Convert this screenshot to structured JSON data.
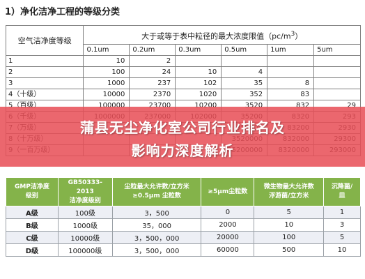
{
  "heading": "1）净化洁净工程的等级分类",
  "table1": {
    "class_header": "空气洁净度等级",
    "limit_header_prefix": "大于或等于表中粒径的最大浓度限值（pc/m",
    "limit_header_sup": "3",
    "limit_header_suffix": "）",
    "sizes": [
      "0.1um",
      "0.2um",
      "0.3um",
      "0.5um",
      "1um",
      "5um"
    ],
    "rows": [
      {
        "cls": "1",
        "v": [
          "10",
          "2",
          "",
          "",
          "",
          ""
        ]
      },
      {
        "cls": "2",
        "v": [
          "100",
          "24",
          "10",
          "4",
          "",
          ""
        ]
      },
      {
        "cls": "3",
        "v": [
          "1000",
          "237",
          "102",
          "35",
          "8",
          ""
        ]
      },
      {
        "cls": "4（十级）",
        "v": [
          "10000",
          "2370",
          "1020",
          "352",
          "83",
          ""
        ]
      },
      {
        "cls": "5（百级）",
        "v": [
          "100000",
          "23700",
          "10200",
          "3520",
          "832",
          "29"
        ]
      },
      {
        "cls": "6（千级）",
        "v": [
          "1000000",
          "237000",
          "102000",
          "35200",
          "8320",
          "293"
        ]
      },
      {
        "cls": "7（万级）",
        "v": [
          "",
          "",
          "",
          "352000",
          "83200",
          "2930"
        ]
      },
      {
        "cls": "8（十万级）",
        "v": [
          "",
          "",
          "",
          "3520000",
          "832000",
          "29300"
        ]
      },
      {
        "cls": "9（一百万级）",
        "v": [
          "",
          "",
          "",
          "35200000",
          "8320000",
          "293000"
        ]
      }
    ]
  },
  "banner": {
    "line1": "蒲县无尘净化室公司行业排名及",
    "line2": "影响力深度解析",
    "color": "#e84e56"
  },
  "table2": {
    "headers": [
      {
        "l1": "GMP洁净度",
        "l2": "级别"
      },
      {
        "l1": "GB50333-2013",
        "l2": "洁净度级别"
      },
      {
        "l1": "尘粒最大允许数/立方米",
        "l2": "≥0.5μm 尘粒数"
      },
      {
        "l1": "≥5μm尘粒数",
        "l2": ""
      },
      {
        "l1": "微生物最大允许数",
        "l2": "浮游菌/立方米"
      },
      {
        "l1": "沉降菌/",
        "l2": "皿"
      }
    ],
    "rows": [
      {
        "v": [
          "A级",
          "100级",
          "3，500",
          "0",
          "5",
          "1"
        ]
      },
      {
        "v": [
          "B级",
          "1000级",
          "35，000",
          "2000",
          "10",
          "3"
        ]
      },
      {
        "v": [
          "C级",
          "10000级",
          "3，500，000",
          "20000",
          "100",
          "5"
        ]
      },
      {
        "v": [
          "D级",
          "100000级",
          "3，500，000",
          "60000",
          "500",
          "10"
        ]
      }
    ],
    "header_color": "#84b34a"
  }
}
